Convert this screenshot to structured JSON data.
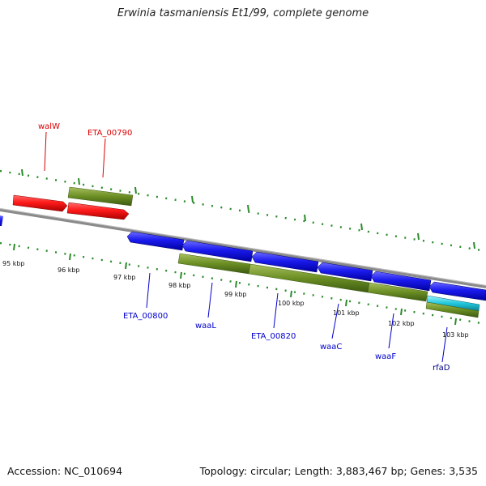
{
  "title": "Erwinia tasmaniensis Et1/99, complete genome",
  "footer": {
    "accession": "Accession: NC_010694",
    "summary": "Topology: circular; Length: 3,883,467 bp; Genes: 3,535"
  },
  "colors": {
    "forward_gene": "#ee1111",
    "reverse_gene": "#1111dd",
    "cds": "#6b8e23",
    "special_feature": "#20c0d0",
    "backbone": "#888888",
    "tick_marks": "#2a8a2a",
    "label_red": "#dd0000",
    "label_blue": "#0000cc"
  },
  "ticks": {
    "unit": "kbp",
    "labels": [
      "95 kbp",
      "96 kbp",
      "97 kbp",
      "98 kbp",
      "99 kbp",
      "100 kbp",
      "101 kbp",
      "102 kbp",
      "103 kbp"
    ]
  },
  "gene_labels": {
    "top": [
      "walW",
      "ETA_00790"
    ],
    "bottom": [
      "ETA_00800",
      "waaL",
      "ETA_00820",
      "waaC",
      "waaF",
      "rfaD"
    ]
  }
}
